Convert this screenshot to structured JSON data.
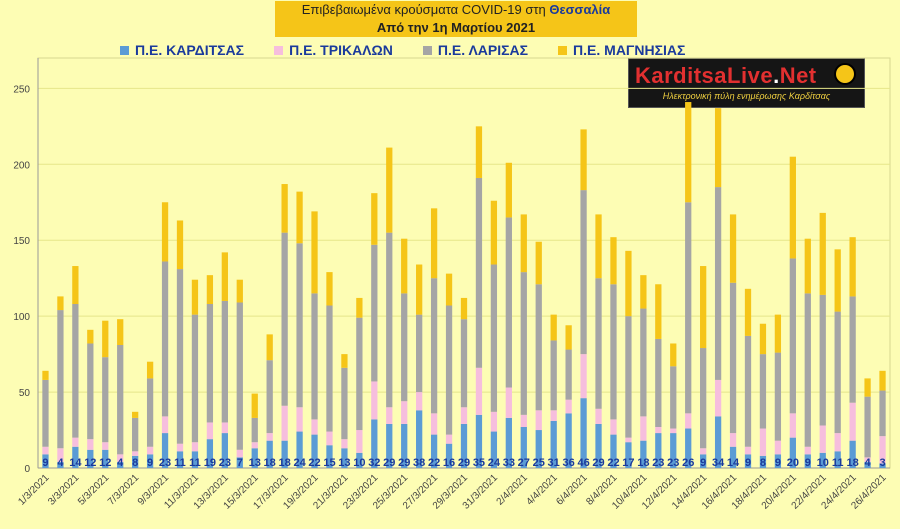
{
  "header": {
    "title_line1_prefix": "Επιβεβαιωμένα κρούσματα COVID-19 στη ",
    "title_line1_region": "Θεσσαλία",
    "title_line2": "Από την 1η Μαρτίου 2021"
  },
  "logo": {
    "name_part1": "KarditsaLive",
    "name_dot": ".",
    "name_part2": "Net",
    "subtitle": "Ηλεκτρονική πύλη ενημέρωσης Καρδίτσας"
  },
  "colors": {
    "karditsa": "#5b9bd5",
    "trikala": "#f6bedd",
    "larisa": "#a5a5a5",
    "magnisia": "#f5c518",
    "grid": "#e6e68a",
    "label": "#1a3a9c"
  },
  "chart_data": {
    "type": "bar",
    "stacked": true,
    "ylim": [
      0,
      270
    ],
    "yticks": [
      0,
      50,
      100,
      150,
      200,
      250
    ],
    "grid": true,
    "legend_position": "top",
    "x": [
      "1/3/2021",
      "2/3/2021",
      "3/3/2021",
      "4/3/2021",
      "5/3/2021",
      "6/3/2021",
      "7/3/2021",
      "8/3/2021",
      "9/3/2021",
      "10/3/2021",
      "11/3/2021",
      "12/3/2021",
      "13/3/2021",
      "14/3/2021",
      "15/3/2021",
      "16/3/2021",
      "17/3/2021",
      "18/3/2021",
      "19/3/2021",
      "20/3/2021",
      "21/3/2021",
      "22/3/2021",
      "23/3/2021",
      "24/3/2021",
      "25/3/2021",
      "26/3/2021",
      "27/3/2021",
      "28/3/2021",
      "29/3/2021",
      "30/3/2021",
      "31/3/2021",
      "1/4/2021",
      "2/4/2021",
      "3/4/2021",
      "4/4/2021",
      "5/4/2021",
      "6/4/2021",
      "7/4/2021",
      "8/4/2021",
      "9/4/2021",
      "10/4/2021",
      "11/4/2021",
      "12/4/2021",
      "13/4/2021",
      "14/4/2021",
      "15/4/2021",
      "16/4/2021",
      "17/4/2021",
      "18/4/2021",
      "19/4/2021",
      "20/4/2021",
      "21/4/2021",
      "22/4/2021",
      "23/4/2021",
      "24/4/2021",
      "25/4/2021",
      "26/4/2021"
    ],
    "xtick_labels": [
      "1/3/2021",
      "",
      "3/3/2021",
      "",
      "5/3/2021",
      "",
      "7/3/2021",
      "",
      "9/3/2021",
      "",
      "11/3/2021",
      "",
      "13/3/2021",
      "",
      "15/3/2021",
      "",
      "17/3/2021",
      "",
      "19/3/2021",
      "",
      "21/3/2021",
      "",
      "23/3/2021",
      "",
      "25/3/2021",
      "",
      "27/3/2021",
      "",
      "29/3/2021",
      "",
      "31/3/2021",
      "",
      "2/4/2021",
      "",
      "4/4/2021",
      "",
      "6/4/2021",
      "",
      "8/4/2021",
      "",
      "10/4/2021",
      "",
      "12/4/2021",
      "",
      "14/4/2021",
      "",
      "16/4/2021",
      "",
      "18/4/2021",
      "",
      "20/4/2021",
      "",
      "22/4/2021",
      "",
      "24/4/2021",
      "",
      "26/4/2021"
    ],
    "series": [
      {
        "name": "Π.Ε. ΚΑΡΔΙΤΣΑΣ",
        "values": [
          9,
          4,
          14,
          12,
          12,
          4,
          8,
          9,
          23,
          11,
          11,
          19,
          23,
          7,
          13,
          18,
          18,
          24,
          22,
          15,
          13,
          10,
          32,
          29,
          29,
          38,
          22,
          16,
          29,
          35,
          24,
          33,
          27,
          25,
          31,
          36,
          46,
          29,
          22,
          17,
          18,
          23,
          23,
          26,
          9,
          34,
          14,
          9,
          8,
          9,
          20,
          9,
          10,
          11,
          18,
          4,
          3
        ]
      },
      {
        "name": "Π.Ε. ΤΡΙΚΑΛΩΝ",
        "values": [
          5,
          9,
          6,
          7,
          5,
          5,
          3,
          5,
          11,
          5,
          6,
          11,
          7,
          5,
          4,
          5,
          23,
          16,
          10,
          9,
          6,
          15,
          25,
          11,
          15,
          12,
          14,
          6,
          11,
          31,
          13,
          20,
          8,
          13,
          7,
          9,
          29,
          10,
          10,
          3,
          16,
          4,
          3,
          10,
          4,
          24,
          9,
          5,
          18,
          9,
          16,
          5,
          18,
          12,
          25,
          3,
          18
        ]
      },
      {
        "name": "Π.Ε. ΛΑΡΙΣΑΣ",
        "values": [
          44,
          91,
          88,
          63,
          56,
          72,
          22,
          45,
          102,
          115,
          84,
          78,
          80,
          97,
          16,
          48,
          114,
          108,
          83,
          83,
          47,
          74,
          90,
          115,
          71,
          51,
          89,
          85,
          58,
          125,
          97,
          112,
          94,
          83,
          46,
          33,
          108,
          86,
          89,
          80,
          71,
          58,
          41,
          139,
          66,
          127,
          99,
          73,
          49,
          58,
          102,
          101,
          86,
          80,
          70,
          40,
          30
        ]
      },
      {
        "name": "Π.Ε. ΜΑΓΝΗΣΙΑΣ",
        "values": [
          6,
          9,
          25,
          9,
          24,
          17,
          4,
          11,
          39,
          32,
          23,
          19,
          32,
          15,
          16,
          17,
          32,
          34,
          54,
          22,
          9,
          13,
          34,
          56,
          36,
          33,
          46,
          21,
          14,
          34,
          42,
          36,
          38,
          28,
          17,
          16,
          40,
          42,
          31,
          43,
          22,
          36,
          15,
          66,
          54,
          52,
          45,
          31,
          20,
          25,
          67,
          36,
          54,
          41,
          39,
          12,
          13
        ]
      }
    ],
    "data_labels": [
      "9",
      "4",
      "14",
      "12",
      "12",
      "4",
      "8",
      "9",
      "23",
      "11",
      "11",
      "19",
      "23",
      "7",
      "13",
      "18",
      "18",
      "24",
      "22",
      "15",
      "13",
      "10",
      "32",
      "29",
      "29",
      "38",
      "22",
      "16",
      "29",
      "35",
      "24",
      "33",
      "27",
      "25",
      "31",
      "36",
      "46",
      "29",
      "22",
      "17",
      "18",
      "23",
      "23",
      "26",
      "9",
      "34",
      "14",
      "9",
      "8",
      "9",
      "20",
      "9",
      "10",
      "11",
      "18",
      "4",
      "3"
    ]
  }
}
